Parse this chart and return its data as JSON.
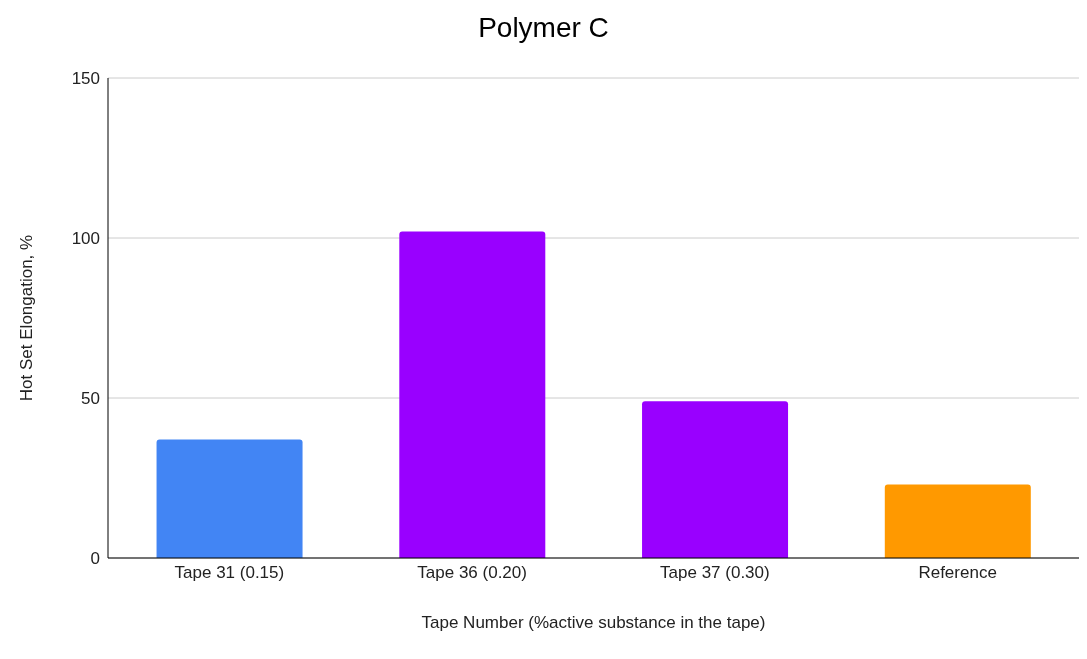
{
  "chart_data": {
    "type": "bar",
    "title": "Polymer C",
    "xlabel": "Tape Number (%active substance in the tape)",
    "ylabel": "Hot Set Elongation, %",
    "categories": [
      "Tape 31 (0.15)",
      "Tape 36 (0.20)",
      "Tape 37 (0.30)",
      "Reference"
    ],
    "values": [
      37,
      102,
      49,
      23
    ],
    "colors": [
      "#4285f4",
      "#9900ff",
      "#9900ff",
      "#ff9900"
    ],
    "ylim": [
      0,
      150
    ],
    "yticks": [
      0,
      50,
      100,
      150
    ],
    "grid": "y"
  }
}
